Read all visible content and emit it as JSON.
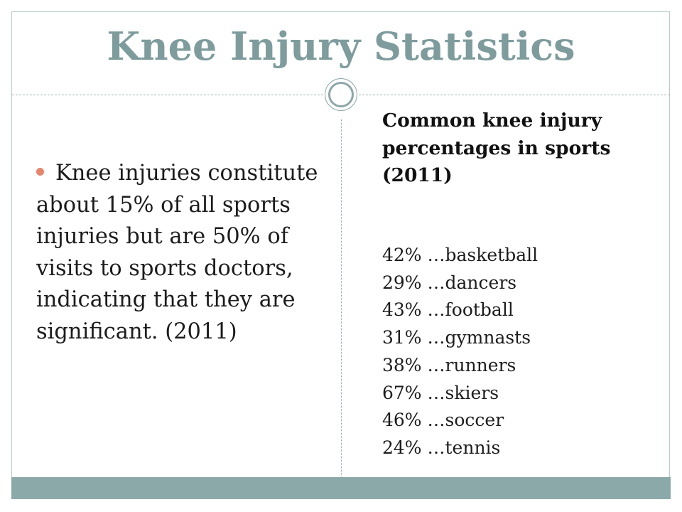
{
  "slide": {
    "title": "Knee Injury Statistics",
    "accent_color": "#7f9c9d",
    "bullet_color": "#e5856c",
    "footer_color": "#8ca9aa"
  },
  "left_column": {
    "bullet_text": "Knee injuries constitute about 15% of all sports injuries but are 50% of visits to sports doctors, indicating that they are significant. (2011)"
  },
  "right_column": {
    "heading": "Common knee injury percentages in sports (2011)",
    "stats": [
      "42% …basketball",
      "29% …dancers",
      "43% …football",
      "31% …gymnasts",
      "38% …runners",
      "67% …skiers",
      "46% …soccer",
      "24% …tennis"
    ]
  }
}
